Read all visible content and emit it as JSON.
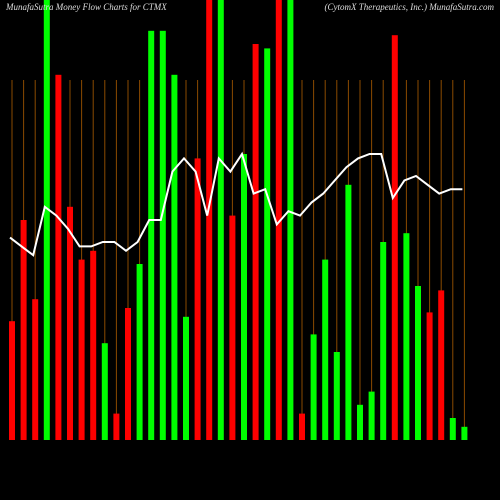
{
  "chart_data": {
    "type": "bar",
    "title": "MunafaSutra  Money Flow  Charts for CTMX",
    "subtitle": "(CytomX  Therapeutics,  Inc.) MunafaSutra.com",
    "ylim": [
      0,
      100
    ],
    "grid": true,
    "grid_color": "#8a4a00",
    "line_color": "#ffffff",
    "series": [
      {
        "name": "money flow",
        "values": [
          27,
          50,
          32,
          100,
          83,
          53,
          41,
          43,
          22,
          6,
          30,
          40,
          93,
          93,
          83,
          28,
          64,
          100,
          100,
          51,
          65,
          90,
          89,
          100,
          100,
          6,
          24,
          41,
          20,
          58,
          8,
          11,
          45,
          92,
          47,
          35,
          29,
          34,
          5,
          3
        ],
        "colors": [
          "#ff0000",
          "#ff0000",
          "#ff0000",
          "#00ff00",
          "#ff0000",
          "#ff0000",
          "#ff0000",
          "#ff0000",
          "#00ff00",
          "#ff0000",
          "#ff0000",
          "#00ff00",
          "#00ff00",
          "#00ff00",
          "#00ff00",
          "#00ff00",
          "#ff0000",
          "#ff0000",
          "#00ff00",
          "#ff0000",
          "#00ff00",
          "#ff0000",
          "#00ff00",
          "#ff0000",
          "#00ff00",
          "#ff0000",
          "#00ff00",
          "#00ff00",
          "#00ff00",
          "#00ff00",
          "#00ff00",
          "#00ff00",
          "#00ff00",
          "#ff0000",
          "#00ff00",
          "#00ff00",
          "#ff0000",
          "#ff0000",
          "#00ff00",
          "#00ff00"
        ]
      },
      {
        "name": "trend",
        "values": [
          46,
          44,
          42,
          53,
          51,
          48,
          44,
          44,
          45,
          45,
          43,
          45,
          50,
          50,
          61,
          64,
          61,
          51,
          64,
          61,
          65,
          56,
          57,
          49,
          52,
          51,
          54,
          56,
          59,
          62,
          64,
          65,
          65,
          55,
          59,
          60,
          58,
          56,
          57,
          57
        ]
      }
    ]
  }
}
